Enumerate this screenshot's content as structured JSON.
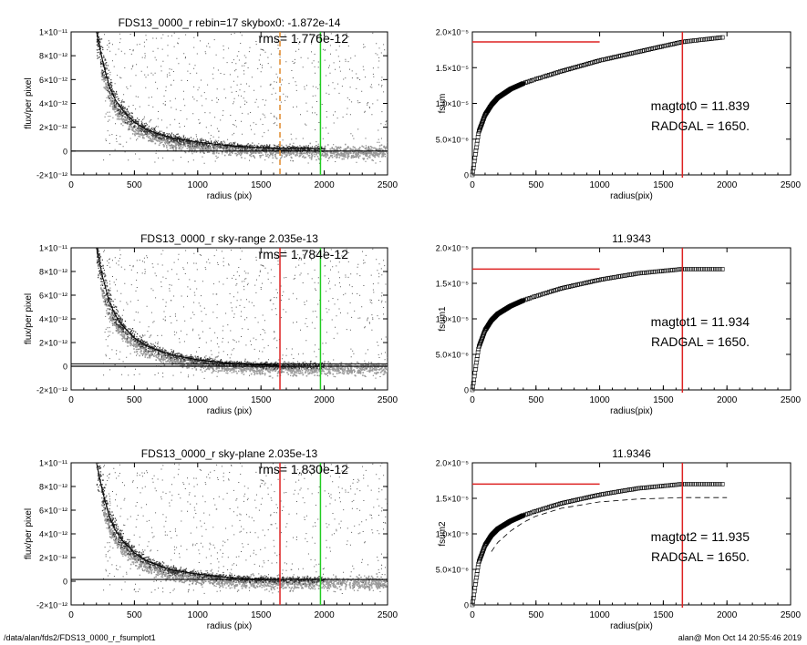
{
  "chart_data": [
    {
      "type": "scatter",
      "title": "FDS13_0000_r rebin=17    skybox0: -1.872e-14",
      "annotation": "rms= 1.776e-12",
      "xlabel": "radius (pix)",
      "ylabel": "flux/per pixel",
      "xlim": [
        0,
        2500
      ],
      "ylim": [
        -2e-12,
        1e-11
      ],
      "xticks": [
        "0",
        "500",
        "1000",
        "1500",
        "2000",
        "2500"
      ],
      "yticks": [
        "-2×10⁻¹²",
        "0",
        "2×10⁻¹²",
        "4×10⁻¹²",
        "6×10⁻¹²",
        "8×10⁻¹²",
        "1×10⁻¹¹"
      ],
      "vlines": [
        {
          "x": 1650,
          "color": "#e08a2c",
          "style": "dashed"
        },
        {
          "x": 1970,
          "color": "#22cc22",
          "style": "solid"
        }
      ],
      "hline": {
        "y": 0,
        "double": false
      },
      "profile": {
        "x": [
          200,
          250,
          300,
          350,
          400,
          500,
          600,
          700,
          800,
          1000,
          1200,
          1400,
          1650,
          2000
        ],
        "y": [
          1e-11,
          7.5e-12,
          5.5e-12,
          4.3e-12,
          3.5e-12,
          2.4e-12,
          1.8e-12,
          1.4e-12,
          1.1e-12,
          7.5e-13,
          5e-13,
          3.5e-13,
          2.5e-13,
          2e-13
        ]
      }
    },
    {
      "type": "line",
      "title": "",
      "xlabel": "radius(pix)",
      "ylabel": "fsum",
      "xlim": [
        0,
        2500
      ],
      "ylim": [
        0,
        2e-05
      ],
      "xticks": [
        "0",
        "500",
        "1000",
        "1500",
        "2000",
        "2500"
      ],
      "yticks": [
        "0",
        "5.0×10⁻⁶",
        "1.0×10⁻⁵",
        "1.5×10⁻⁵",
        "2.0×10⁻⁵"
      ],
      "text_lines": [
        "magtot0 =  11.839",
        "RADGAL =   1650."
      ],
      "hline_red": {
        "y": 1.86e-05,
        "x": [
          0,
          1000
        ]
      },
      "vline_red": 1650,
      "curve": {
        "x": [
          0,
          50,
          100,
          150,
          200,
          300,
          400,
          500,
          700,
          1000,
          1300,
          1650,
          2000
        ],
        "y": [
          0,
          6e-06,
          8.4e-06,
          9.8e-06,
          1.08e-05,
          1.2e-05,
          1.28e-05,
          1.34e-05,
          1.45e-05,
          1.6e-05,
          1.72e-05,
          1.86e-05,
          1.93e-05
        ]
      },
      "dashed_curve": null
    },
    {
      "type": "scatter",
      "title": "FDS13_0000_r sky-range  2.035e-13",
      "annotation": "rms= 1.784e-12",
      "xlabel": "radius (pix)",
      "ylabel": "flux/per pixel",
      "xlim": [
        0,
        2500
      ],
      "ylim": [
        -2e-12,
        1e-11
      ],
      "xticks": [
        "0",
        "500",
        "1000",
        "1500",
        "2000",
        "2500"
      ],
      "yticks": [
        "-2×10⁻¹²",
        "0",
        "2×10⁻¹²",
        "4×10⁻¹²",
        "6×10⁻¹²",
        "8×10⁻¹²",
        "1×10⁻¹¹"
      ],
      "vlines": [
        {
          "x": 1650,
          "color": "#dd2222",
          "style": "solid"
        },
        {
          "x": 1970,
          "color": "#22cc22",
          "style": "solid"
        }
      ],
      "hline": {
        "y": 0,
        "double": true,
        "offset": 2.035e-13
      },
      "profile": {
        "x": [
          200,
          250,
          300,
          350,
          400,
          500,
          600,
          700,
          800,
          1000,
          1200,
          1400,
          1650
        ],
        "y": [
          1e-11,
          7.5e-12,
          5.5e-12,
          4.3e-12,
          3.5e-12,
          2.4e-12,
          1.7e-12,
          1.3e-12,
          9.5e-13,
          5.5e-13,
          3e-13,
          1.5e-13,
          8e-14
        ]
      }
    },
    {
      "type": "line",
      "title": "11.9343",
      "xlabel": "radius(pix)",
      "ylabel": "fsum1",
      "xlim": [
        0,
        2500
      ],
      "ylim": [
        0,
        2e-05
      ],
      "xticks": [
        "0",
        "500",
        "1000",
        "1500",
        "2000",
        "2500"
      ],
      "yticks": [
        "0",
        "5.0×10⁻⁶",
        "1.0×10⁻⁵",
        "1.5×10⁻⁵",
        "2.0×10⁻⁵"
      ],
      "text_lines": [
        "magtot1 =  11.934",
        "RADGAL =   1650."
      ],
      "hline_red": {
        "y": 1.7e-05,
        "x": [
          0,
          1000
        ]
      },
      "vline_red": 1650,
      "curve": {
        "x": [
          0,
          50,
          100,
          150,
          200,
          300,
          400,
          500,
          700,
          1000,
          1300,
          1650,
          2000
        ],
        "y": [
          0,
          6e-06,
          8.4e-06,
          9.8e-06,
          1.07e-05,
          1.18e-05,
          1.26e-05,
          1.32e-05,
          1.43e-05,
          1.55e-05,
          1.64e-05,
          1.7e-05,
          1.7e-05
        ]
      },
      "dashed_curve": null
    },
    {
      "type": "scatter",
      "title": "FDS13_0000_r sky-plane  2.035e-13",
      "annotation": "rms= 1.830e-12",
      "xlabel": "radius (pix)",
      "ylabel": "flux/per pixel",
      "xlim": [
        0,
        2500
      ],
      "ylim": [
        -2e-12,
        1e-11
      ],
      "xticks": [
        "0",
        "500",
        "1000",
        "1500",
        "2000",
        "2500"
      ],
      "yticks": [
        "-2×10⁻¹²",
        "0",
        "2×10⁻¹²",
        "4×10⁻¹²",
        "6×10⁻¹²",
        "8×10⁻¹²",
        "1×10⁻¹¹"
      ],
      "vlines": [
        {
          "x": 1650,
          "color": "#dd2222",
          "style": "solid"
        },
        {
          "x": 1970,
          "color": "#22cc22",
          "style": "solid"
        }
      ],
      "hline": {
        "y": 1.5e-13,
        "double": false
      },
      "profile": {
        "x": [
          200,
          250,
          300,
          350,
          400,
          500,
          600,
          700,
          800,
          1000,
          1200,
          1400,
          1650
        ],
        "y": [
          1e-11,
          7.5e-12,
          5.5e-12,
          4.3e-12,
          3.5e-12,
          2.4e-12,
          1.7e-12,
          1.3e-12,
          9.5e-13,
          6e-13,
          3.5e-13,
          2e-13,
          1.5e-13
        ]
      }
    },
    {
      "type": "line",
      "title": "11.9346",
      "xlabel": "radius(pix)",
      "ylabel": "fsum2",
      "xlim": [
        0,
        2500
      ],
      "ylim": [
        0,
        2e-05
      ],
      "xticks": [
        "0",
        "500",
        "1000",
        "1500",
        "2000",
        "2500"
      ],
      "yticks": [
        "0",
        "5.0×10⁻⁶",
        "1.0×10⁻⁵",
        "1.5×10⁻⁵",
        "2.0×10⁻⁵"
      ],
      "text_lines": [
        "magtot2 =  11.935",
        "RADGAL =   1650."
      ],
      "hline_red": {
        "y": 1.7e-05,
        "x": [
          0,
          1000
        ]
      },
      "vline_red": 1650,
      "curve": {
        "x": [
          0,
          50,
          100,
          150,
          200,
          300,
          400,
          500,
          700,
          1000,
          1300,
          1650,
          2000
        ],
        "y": [
          0,
          6e-06,
          8.4e-06,
          9.8e-06,
          1.07e-05,
          1.18e-05,
          1.26e-05,
          1.32e-05,
          1.43e-05,
          1.55e-05,
          1.64e-05,
          1.7e-05,
          1.7e-05
        ]
      },
      "dashed_curve": {
        "x": [
          150,
          200,
          300,
          400,
          500,
          700,
          1000,
          1300,
          1650,
          2000
        ],
        "y": [
          7.5e-06,
          8.8e-06,
          1.04e-05,
          1.16e-05,
          1.25e-05,
          1.36e-05,
          1.45e-05,
          1.49e-05,
          1.51e-05,
          1.51e-05
        ]
      }
    }
  ],
  "footer": {
    "left": "/data/alan/fds2/FDS13_0000_r_fsumplot1",
    "right": "alan@  Mon Oct 14 20:55:46 2019"
  }
}
